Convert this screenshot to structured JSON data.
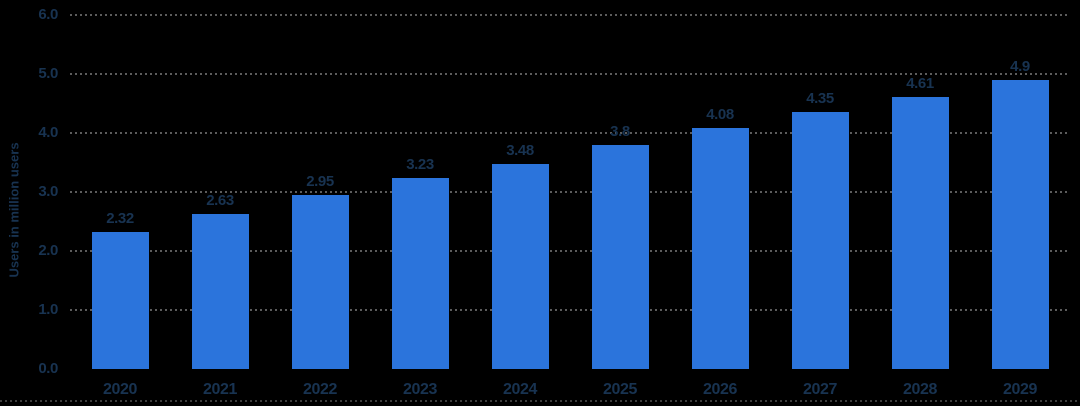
{
  "chart_data": {
    "type": "bar",
    "title": "",
    "ylabel": "Users in million users",
    "xlabel": "",
    "categories": [
      "2020",
      "2021",
      "2022",
      "2023",
      "2024",
      "2025",
      "2026",
      "2027",
      "2028",
      "2029"
    ],
    "values": [
      2.32,
      2.63,
      2.95,
      3.23,
      3.48,
      3.8,
      4.08,
      4.35,
      4.61,
      4.9
    ],
    "value_labels": [
      "2.32",
      "2.63",
      "2.95",
      "3.23",
      "3.48",
      "3.8",
      "4.08",
      "4.35",
      "4.61",
      "4.9"
    ],
    "yticks": [
      {
        "value": 0,
        "label": "0.0"
      },
      {
        "value": 1,
        "label": "1.0"
      },
      {
        "value": 2,
        "label": "2.0"
      },
      {
        "value": 3,
        "label": "3.0"
      },
      {
        "value": 4,
        "label": "4.0"
      },
      {
        "value": 5,
        "label": "5.0"
      },
      {
        "value": 6,
        "label": "6.0"
      }
    ],
    "ylim": [
      0,
      6
    ],
    "grid": "horizontal-dotted",
    "legend_position": "none",
    "colors": {
      "bar": "#2b74dc",
      "text": "#183351",
      "grid": "#5c5c5c",
      "baseline": "#3f3f3f",
      "background": "#000000"
    }
  }
}
